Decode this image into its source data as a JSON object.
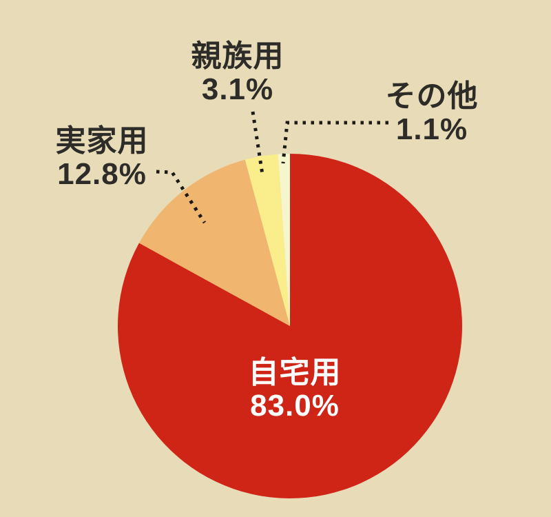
{
  "chart_data": {
    "type": "pie",
    "background": "#E8DBB7",
    "text_color": "#2E2C28",
    "leader_line_color": "#1C1A17",
    "start_angle_deg": 0,
    "direction": "clockwise",
    "series": [
      {
        "label": "自宅用",
        "value": 83.0,
        "display": "83.0%",
        "color": "#CF2517",
        "label_color": "#FFFFFF"
      },
      {
        "label": "実家用",
        "value": 12.8,
        "display": "12.8%",
        "color": "#F0B56E",
        "label_color": "#2E2C28"
      },
      {
        "label": "親族用",
        "value": 3.1,
        "display": "3.1%",
        "color": "#F9EE8B",
        "label_color": "#2E2C28"
      },
      {
        "label": "その他",
        "value": 1.1,
        "display": "1.1%",
        "color": "#F6F5CE",
        "label_color": "#2E2C28"
      }
    ]
  }
}
